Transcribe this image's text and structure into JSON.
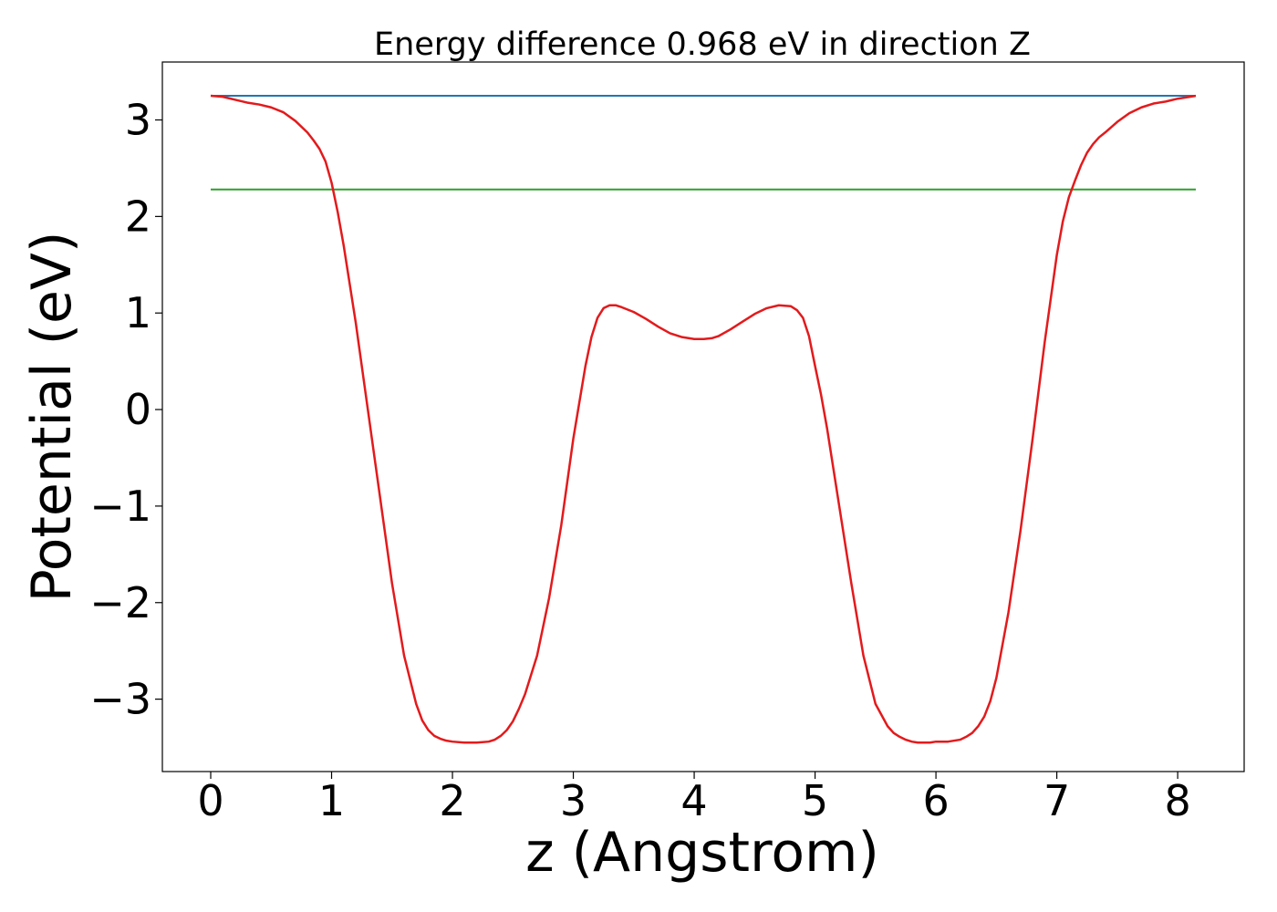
{
  "chart_data": {
    "type": "line",
    "title": "Energy difference 0.968 eV in direction Z",
    "xlabel": "z (Angstrom)",
    "ylabel": "Potential (eV)",
    "xlim": [
      -0.4,
      8.55
    ],
    "ylim": [
      -3.75,
      3.6
    ],
    "x_ticks": [
      0,
      1,
      2,
      3,
      4,
      5,
      6,
      7,
      8
    ],
    "x_tick_labels": [
      "0",
      "1",
      "2",
      "3",
      "4",
      "5",
      "6",
      "7",
      "8"
    ],
    "y_ticks": [
      -3,
      -2,
      -1,
      0,
      1,
      2,
      3
    ],
    "y_tick_labels": [
      "−3",
      "−2",
      "−1",
      "0",
      "1",
      "2",
      "3"
    ],
    "grid": false,
    "series": [
      {
        "color": "#1f77b4",
        "style": "horizontal",
        "x": [
          0,
          8.15
        ],
        "values": [
          3.25,
          3.25
        ]
      },
      {
        "color": "#2ca02c",
        "style": "horizontal",
        "x": [
          0,
          8.15
        ],
        "values": [
          2.28,
          2.28
        ]
      },
      {
        "color": "#e31a1c",
        "style": "curve",
        "x": [
          0,
          0.1,
          0.2,
          0.3,
          0.4,
          0.5,
          0.6,
          0.7,
          0.8,
          0.85,
          0.9,
          0.95,
          1.0,
          1.05,
          1.1,
          1.15,
          1.2,
          1.3,
          1.4,
          1.5,
          1.6,
          1.7,
          1.75,
          1.8,
          1.85,
          1.9,
          1.95,
          2.0,
          2.1,
          2.2,
          2.3,
          2.35,
          2.4,
          2.45,
          2.5,
          2.55,
          2.6,
          2.7,
          2.8,
          2.9,
          3.0,
          3.1,
          3.15,
          3.2,
          3.25,
          3.3,
          3.35,
          3.4,
          3.5,
          3.6,
          3.7,
          3.8,
          3.9,
          4.0,
          4.08,
          4.15,
          4.2,
          4.3,
          4.4,
          4.5,
          4.6,
          4.7,
          4.8,
          4.85,
          4.9,
          4.95,
          5.0,
          5.05,
          5.1,
          5.15,
          5.2,
          5.3,
          5.4,
          5.5,
          5.6,
          5.65,
          5.7,
          5.75,
          5.8,
          5.85,
          5.9,
          5.95,
          6.0,
          6.1,
          6.2,
          6.25,
          6.3,
          6.35,
          6.4,
          6.45,
          6.5,
          6.6,
          6.7,
          6.8,
          6.9,
          7.0,
          7.05,
          7.1,
          7.15,
          7.2,
          7.25,
          7.3,
          7.35,
          7.4,
          7.5,
          7.6,
          7.7,
          7.8,
          7.9,
          8.0,
          8.1,
          8.15
        ],
        "values": [
          3.25,
          3.24,
          3.21,
          3.18,
          3.16,
          3.13,
          3.08,
          2.99,
          2.87,
          2.79,
          2.7,
          2.57,
          2.35,
          2.05,
          1.7,
          1.3,
          0.9,
          0.0,
          -0.9,
          -1.8,
          -2.55,
          -3.05,
          -3.22,
          -3.32,
          -3.38,
          -3.41,
          -3.43,
          -3.44,
          -3.45,
          -3.45,
          -3.44,
          -3.42,
          -3.38,
          -3.32,
          -3.23,
          -3.1,
          -2.95,
          -2.55,
          -1.95,
          -1.2,
          -0.3,
          0.45,
          0.75,
          0.95,
          1.05,
          1.08,
          1.08,
          1.06,
          1.01,
          0.94,
          0.86,
          0.79,
          0.75,
          0.73,
          0.73,
          0.74,
          0.76,
          0.83,
          0.91,
          0.99,
          1.05,
          1.08,
          1.07,
          1.03,
          0.95,
          0.76,
          0.45,
          0.15,
          -0.2,
          -0.6,
          -1.0,
          -1.8,
          -2.55,
          -3.05,
          -3.28,
          -3.35,
          -3.39,
          -3.42,
          -3.44,
          -3.45,
          -3.45,
          -3.45,
          -3.44,
          -3.44,
          -3.42,
          -3.39,
          -3.35,
          -3.28,
          -3.18,
          -3.02,
          -2.78,
          -2.1,
          -1.25,
          -0.3,
          0.7,
          1.6,
          1.95,
          2.2,
          2.37,
          2.53,
          2.66,
          2.75,
          2.82,
          2.87,
          2.98,
          3.07,
          3.13,
          3.17,
          3.19,
          3.22,
          3.24,
          3.25
        ]
      }
    ]
  }
}
